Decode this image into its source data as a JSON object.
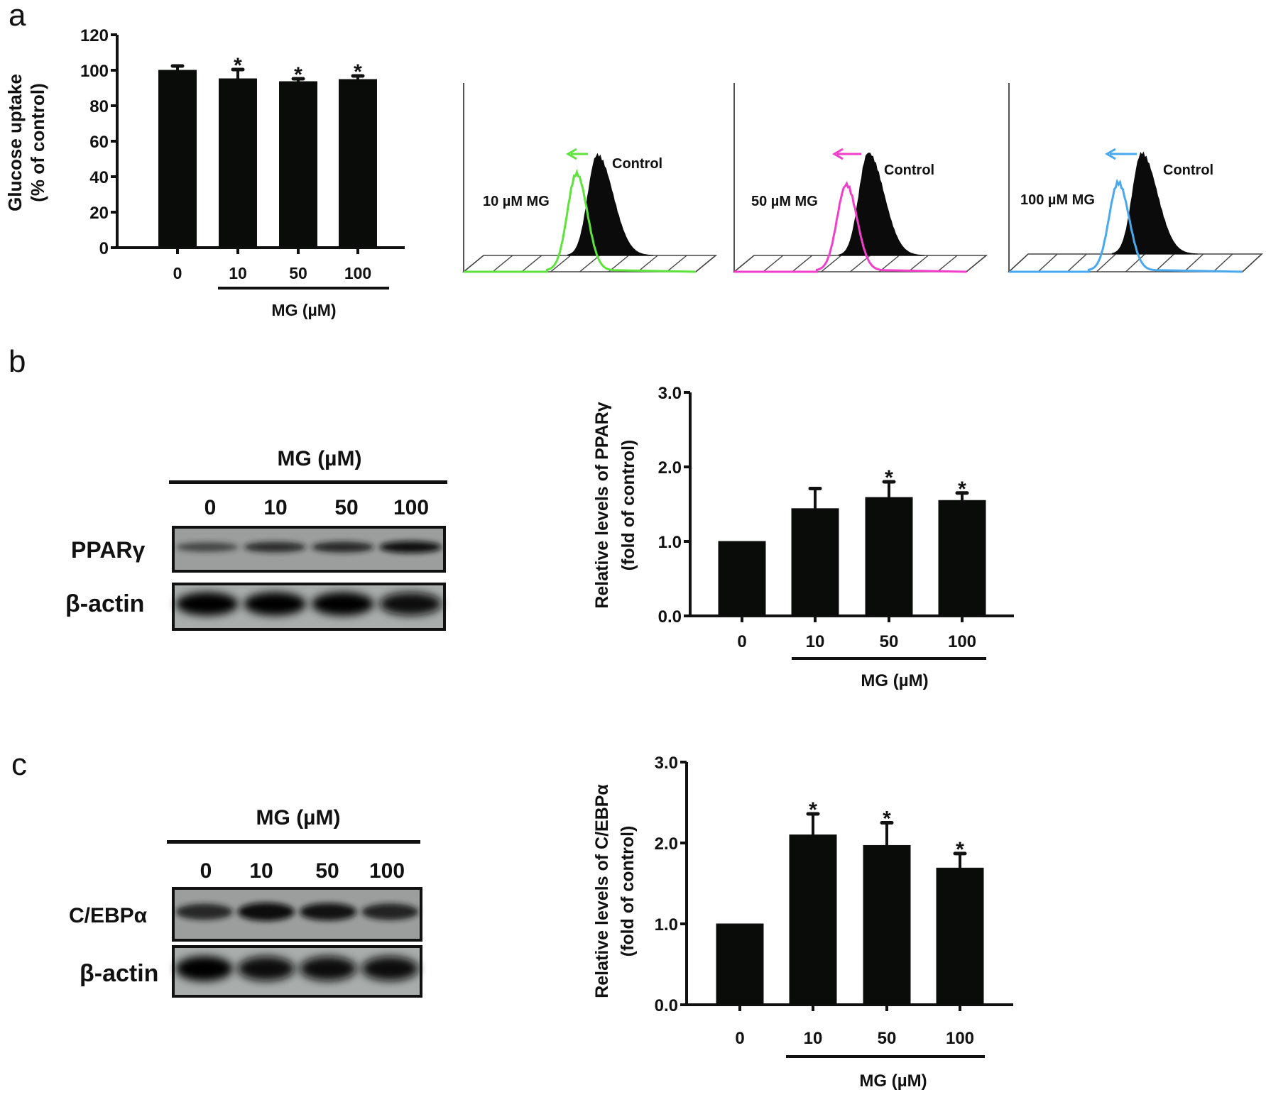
{
  "panels": {
    "a": "a",
    "b": "b",
    "c": "c"
  },
  "chart_data": [
    {
      "id": "glucose",
      "type": "bar",
      "title": "",
      "ylabel": [
        "Glucose uptake",
        "(% of control)"
      ],
      "xlabel": "MG (µM)",
      "categories": [
        "0",
        "10",
        "50",
        "100"
      ],
      "values": [
        100,
        95.2,
        93.6,
        94.8
      ],
      "errors": [
        2.4,
        5.2,
        1.6,
        2.0
      ],
      "significant": [
        false,
        true,
        true,
        true
      ],
      "significance_mark": "*",
      "ylim": [
        0,
        120
      ],
      "yticks": [
        "0",
        "20",
        "40",
        "60",
        "80",
        "100",
        "120"
      ],
      "ytick_values": [
        0,
        20,
        40,
        60,
        80,
        100,
        120
      ],
      "grid": false,
      "bar_color": "#0a0c0a"
    },
    {
      "id": "pparg",
      "type": "bar",
      "title": "",
      "ylabel": [
        "Relative levels of PPARγ",
        "(fold of control)"
      ],
      "xlabel": "MG (µM)",
      "categories": [
        "0",
        "10",
        "50",
        "100"
      ],
      "values": [
        1.0,
        1.44,
        1.59,
        1.55
      ],
      "errors": [
        0,
        0.27,
        0.21,
        0.1
      ],
      "significant": [
        false,
        false,
        true,
        true
      ],
      "significance_mark": "*",
      "ylim": [
        0,
        3.0
      ],
      "yticks": [
        "0.0",
        "1.0",
        "2.0",
        "3.0"
      ],
      "ytick_values": [
        0,
        1,
        2,
        3
      ],
      "grid": false,
      "bar_color": "#0a0c0a"
    },
    {
      "id": "cebpa",
      "type": "bar",
      "title": "",
      "ylabel": [
        "Relative levels of C/EBPα",
        "(fold of control)"
      ],
      "xlabel": "MG (µM)",
      "categories": [
        "0",
        "10",
        "50",
        "100"
      ],
      "values": [
        1.0,
        2.1,
        1.97,
        1.69
      ],
      "errors": [
        0,
        0.26,
        0.28,
        0.18
      ],
      "significant": [
        false,
        true,
        true,
        true
      ],
      "significance_mark": "*",
      "ylim": [
        0,
        3.0
      ],
      "yticks": [
        "0.0",
        "1.0",
        "2.0",
        "3.0"
      ],
      "ytick_values": [
        0,
        1,
        2,
        3
      ],
      "grid": false,
      "bar_color": "#0a0c0a"
    }
  ],
  "histograms": [
    {
      "label": "10 µM MG",
      "control_label": "Control",
      "color": "#5ee23c"
    },
    {
      "label": "50 µM MG",
      "control_label": "Control",
      "color": "#f23fc9"
    },
    {
      "label": "100 µM MG",
      "control_label": "Control",
      "color": "#4aa8ec"
    }
  ],
  "blots": [
    {
      "id": "b",
      "header": "MG (µM)",
      "lanes": [
        "0",
        "10",
        "50",
        "100"
      ],
      "rows": [
        {
          "label": "PPARγ",
          "intensity": [
            0.45,
            0.65,
            0.7,
            0.9
          ]
        },
        {
          "label": "β-actin",
          "intensity": [
            1,
            1,
            1,
            0.95
          ]
        }
      ]
    },
    {
      "id": "c",
      "header": "MG (µM)",
      "lanes": [
        "0",
        "10",
        "50",
        "100"
      ],
      "rows": [
        {
          "label": "C/EBPα",
          "intensity": [
            0.7,
            0.95,
            0.85,
            0.75
          ]
        },
        {
          "label": "β-actin",
          "intensity": [
            1,
            0.95,
            0.95,
            0.95
          ]
        }
      ]
    }
  ]
}
